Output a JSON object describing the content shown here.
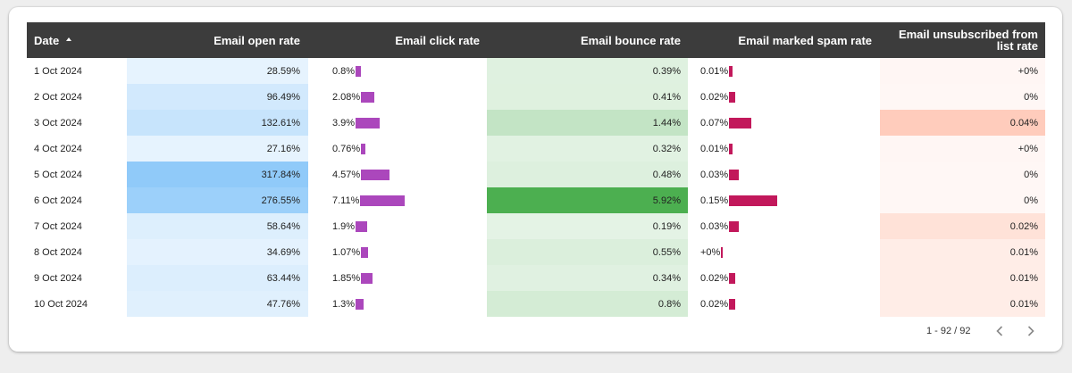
{
  "table": {
    "columns": {
      "date": "Date",
      "open": "Email open rate",
      "click": "Email click rate",
      "bounce": "Email bounce rate",
      "spam": "Email marked spam rate",
      "unsub": "Email unsubscribed from list rate"
    },
    "sort": {
      "column": "Date",
      "direction": "ascending",
      "icon": "sort-ascending-icon"
    },
    "colors": {
      "header_bg": "#3c3c3c",
      "click_bar": "#ab47bc",
      "spam_bar": "#c2185b",
      "open_heat": "#90caf9",
      "bounce_heat": "#4caf50",
      "unsub_heat": "#ffccbc"
    },
    "rows": [
      {
        "date": "1 Oct 2024",
        "open": "28.59%",
        "click": "0.8%",
        "bounce": "0.39%",
        "spam": "0.01%",
        "unsub": "+0%"
      },
      {
        "date": "2 Oct 2024",
        "open": "96.49%",
        "click": "2.08%",
        "bounce": "0.41%",
        "spam": "0.02%",
        "unsub": "0%"
      },
      {
        "date": "3 Oct 2024",
        "open": "132.61%",
        "click": "3.9%",
        "bounce": "1.44%",
        "spam": "0.07%",
        "unsub": "0.04%"
      },
      {
        "date": "4 Oct 2024",
        "open": "27.16%",
        "click": "0.76%",
        "bounce": "0.32%",
        "spam": "0.01%",
        "unsub": "+0%"
      },
      {
        "date": "5 Oct 2024",
        "open": "317.84%",
        "click": "4.57%",
        "bounce": "0.48%",
        "spam": "0.03%",
        "unsub": "0%"
      },
      {
        "date": "6 Oct 2024",
        "open": "276.55%",
        "click": "7.11%",
        "bounce": "5.92%",
        "spam": "0.15%",
        "unsub": "0%"
      },
      {
        "date": "7 Oct 2024",
        "open": "58.64%",
        "click": "1.9%",
        "bounce": "0.19%",
        "spam": "0.03%",
        "unsub": "0.02%"
      },
      {
        "date": "8 Oct 2024",
        "open": "34.69%",
        "click": "1.07%",
        "bounce": "0.55%",
        "spam": "+0%",
        "unsub": "0.01%"
      },
      {
        "date": "9 Oct 2024",
        "open": "63.44%",
        "click": "1.85%",
        "bounce": "0.34%",
        "spam": "0.02%",
        "unsub": "0.01%"
      },
      {
        "date": "10 Oct 2024",
        "open": "47.76%",
        "click": "1.3%",
        "bounce": "0.8%",
        "spam": "0.02%",
        "unsub": "0.01%"
      }
    ],
    "values": {
      "open": [
        28.59,
        96.49,
        132.61,
        27.16,
        317.84,
        276.55,
        58.64,
        34.69,
        63.44,
        47.76
      ],
      "click": [
        0.8,
        2.08,
        3.9,
        0.76,
        4.57,
        7.11,
        1.9,
        1.07,
        1.85,
        1.3
      ],
      "bounce": [
        0.39,
        0.41,
        1.44,
        0.32,
        0.48,
        5.92,
        0.19,
        0.55,
        0.34,
        0.8
      ],
      "spam": [
        0.01,
        0.02,
        0.07,
        0.01,
        0.03,
        0.15,
        0.03,
        0.001,
        0.02,
        0.02
      ],
      "unsub": [
        0.001,
        0,
        0.04,
        0.001,
        0,
        0,
        0.02,
        0.01,
        0.01,
        0.01
      ]
    }
  },
  "pagination": {
    "range": "1 - 92 / 92",
    "prev_icon": "chevron-left-icon",
    "next_icon": "chevron-right-icon"
  }
}
